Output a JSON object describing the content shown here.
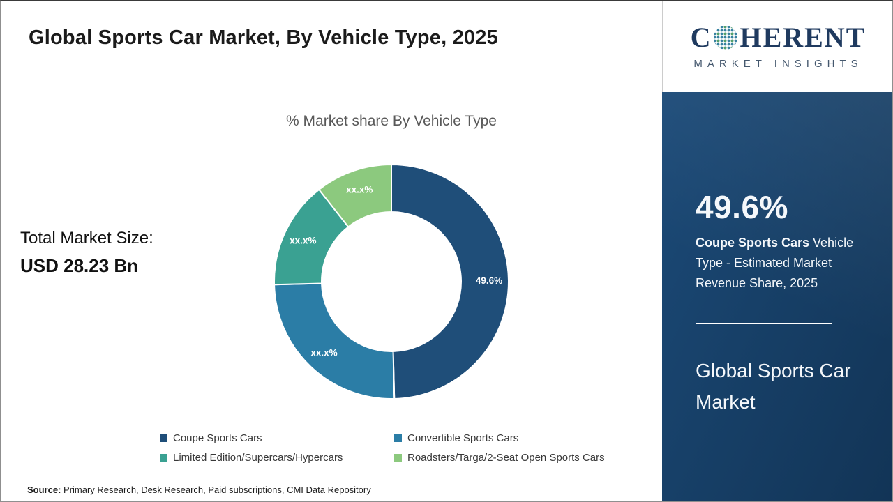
{
  "page": {
    "title": "Global Sports Car Market, By Vehicle Type, 2025",
    "source_label": "Source:",
    "source_text": " Primary Research, Desk Research, Paid subscriptions, CMI Data Repository"
  },
  "chart_data": {
    "type": "pie",
    "donut": true,
    "title": "% Market share By Vehicle Type",
    "categories": [
      "Coupe Sports Cars",
      "Convertible Sports Cars",
      "Limited Edition/Supercars/Hypercars",
      "Roadsters/Targa/2-Seat Open Sports Cars"
    ],
    "values": [
      49.6,
      25.0,
      14.8,
      10.6
    ],
    "display_labels": [
      "49.6%",
      "xx.x%",
      "xx.x%",
      "xx.x%"
    ],
    "colors": [
      "#1f4e79",
      "#2b7da6",
      "#3aa192",
      "#8cc97e"
    ],
    "legend_position": "bottom",
    "start_angle_deg": 0,
    "note": "Only the 49.6% slice value is shown; other slices are masked as xx.x% and their values are estimated from arc angles."
  },
  "market_size": {
    "label": "Total Market Size:",
    "value": "USD 28.23 Bn"
  },
  "side_panel": {
    "stat_value": "49.6%",
    "stat_bold": "Coupe Sports Cars",
    "stat_rest": " Vehicle Type - Estimated Market Revenue Share, 2025",
    "panel_title": "Global Sports Car Market",
    "panel_bg": "#17406a"
  },
  "logo": {
    "line1_pre": "C",
    "line1_post": "HERENT",
    "line2": "MARKET INSIGHTS",
    "brand_navy": "#1f3a5f",
    "globe_dot_color": "#35809f",
    "globe_dot_color2": "#53a06a"
  }
}
